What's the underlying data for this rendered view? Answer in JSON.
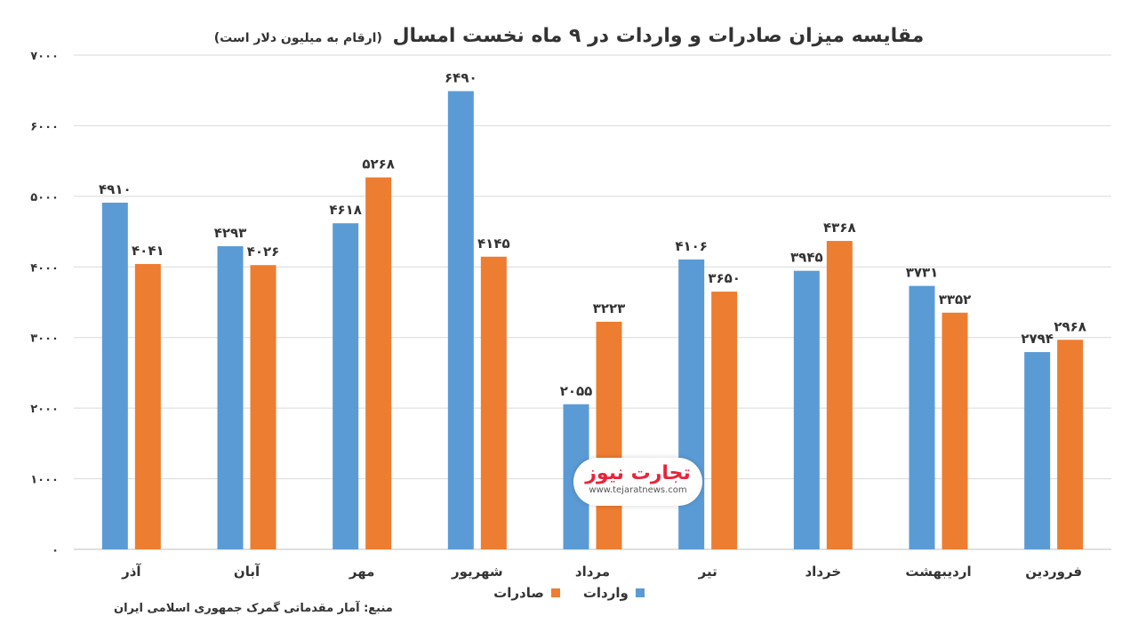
{
  "title": {
    "main": "مقایسه میزان صادرات و واردات در ۹ ماه نخست امسال",
    "sub": "(ارقام به میلیون دلار است)"
  },
  "source_note": "منبع: آمار مقدماتی گمرک جمهوری اسلامی ایران",
  "watermark": {
    "logo": "تجارت نیوز",
    "url": "www.tejaratnews.com"
  },
  "colors": {
    "imports": "#5b9bd5",
    "exports": "#ed7d31",
    "grid": "#d9d9d9",
    "text": "#333333"
  },
  "chart_data": {
    "type": "bar",
    "categories": [
      "آذر",
      "آبان",
      "مهر",
      "شهریور",
      "مرداد",
      "تیر",
      "خرداد",
      "اردیبهشت",
      "فروردین"
    ],
    "series": [
      {
        "name": "واردات",
        "color": "#5b9bd5",
        "values": [
          4910,
          4293,
          4618,
          6490,
          2055,
          4106,
          3945,
          3731,
          2794
        ],
        "labels": [
          "۴۹۱۰",
          "۴۲۹۳",
          "۴۶۱۸",
          "۶۴۹۰",
          "۲۰۵۵",
          "۴۱۰۶",
          "۳۹۴۵",
          "۳۷۳۱",
          "۲۷۹۴"
        ]
      },
      {
        "name": "صادرات",
        "color": "#ed7d31",
        "values": [
          4041,
          4026,
          5268,
          4145,
          3223,
          3650,
          4368,
          3352,
          2968
        ],
        "labels": [
          "۴۰۴۱",
          "۴۰۲۶",
          "۵۲۶۸",
          "۴۱۴۵",
          "۳۲۲۳",
          "۳۶۵۰",
          "۴۳۶۸",
          "۳۳۵۲",
          "۲۹۶۸"
        ]
      }
    ],
    "ylim": [
      0,
      7000
    ],
    "yticks": [
      0,
      1000,
      2000,
      3000,
      4000,
      5000,
      6000,
      7000
    ],
    "ytick_labels": [
      "۰",
      "۱۰۰۰",
      "۲۰۰۰",
      "۳۰۰۰",
      "۴۰۰۰",
      "۵۰۰۰",
      "۶۰۰۰",
      "۷۰۰۰"
    ],
    "grid": true,
    "legend_position": "bottom-center",
    "category_direction": "right-to-left"
  }
}
